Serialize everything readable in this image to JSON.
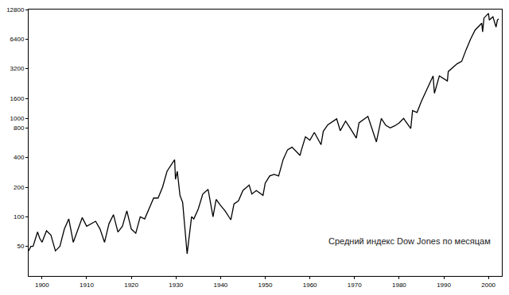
{
  "chart_data": {
    "type": "line",
    "annotation": "Средний индекс Dow Jones по месяцам",
    "x": [
      1897.0,
      1897.5,
      1898.0,
      1899.0,
      1899.5,
      1900.0,
      1901.0,
      1902.0,
      1903.0,
      1904.0,
      1905.0,
      1906.0,
      1907.0,
      1908.0,
      1909.0,
      1910.0,
      1911.0,
      1912.0,
      1913.0,
      1914.0,
      1915.0,
      1916.0,
      1917.0,
      1918.0,
      1919.0,
      1920.0,
      1921.0,
      1922.0,
      1923.0,
      1924.0,
      1925.0,
      1926.0,
      1927.0,
      1928.0,
      1929.7,
      1929.9,
      1930.3,
      1930.9,
      1931.5,
      1932.5,
      1933.5,
      1934.0,
      1935.0,
      1936.0,
      1937.2,
      1938.3,
      1939.0,
      1940.0,
      1941.0,
      1942.3,
      1943.0,
      1944.0,
      1945.0,
      1946.4,
      1947.0,
      1948.0,
      1949.5,
      1950.0,
      1951.0,
      1952.0,
      1953.0,
      1954.0,
      1955.0,
      1956.0,
      1957.8,
      1958.0,
      1959.0,
      1960.0,
      1961.0,
      1962.5,
      1963.0,
      1964.0,
      1966.0,
      1966.8,
      1968.0,
      1969.0,
      1970.4,
      1971.0,
      1973.0,
      1974.9,
      1976.0,
      1977.0,
      1978.0,
      1979.0,
      1980.0,
      1981.0,
      1982.6,
      1983.0,
      1984.0,
      1985.0,
      1986.0,
      1987.6,
      1987.9,
      1989.0,
      1990.8,
      1991.0,
      1993.0,
      1994.0,
      1995.0,
      1996.0,
      1997.0,
      1998.5,
      1998.7,
      1999.0,
      2000.0,
      2000.2,
      2001.0,
      2001.7,
      2002.0,
      2002.3
    ],
    "values": [
      45,
      50,
      50,
      70,
      60,
      55,
      72,
      65,
      45,
      50,
      75,
      95,
      55,
      75,
      98,
      80,
      85,
      90,
      75,
      55,
      85,
      105,
      70,
      80,
      115,
      75,
      68,
      100,
      95,
      120,
      155,
      155,
      200,
      290,
      380,
      240,
      290,
      165,
      140,
      42,
      100,
      95,
      120,
      170,
      190,
      100,
      150,
      130,
      115,
      93,
      135,
      145,
      185,
      210,
      170,
      185,
      165,
      220,
      260,
      270,
      260,
      380,
      480,
      510,
      420,
      460,
      650,
      600,
      720,
      540,
      740,
      860,
      990,
      750,
      940,
      800,
      630,
      900,
      1050,
      577,
      1000,
      850,
      800,
      840,
      900,
      1000,
      790,
      1200,
      1150,
      1500,
      1900,
      2700,
      1800,
      2700,
      2400,
      3000,
      3600,
      3800,
      5000,
      6400,
      7900,
      9300,
      7600,
      10500,
      11700,
      10000,
      10800,
      8500,
      10000,
      10300
    ],
    "color": "#000000",
    "log": "y",
    "grid": false,
    "xlim": [
      1897,
      2003
    ],
    "ylim": [
      25,
      12800
    ],
    "xticks": [
      1900,
      1910,
      1920,
      1930,
      1940,
      1950,
      1960,
      1970,
      1980,
      1990,
      2000
    ],
    "yticks": [
      50,
      100,
      200,
      400,
      800,
      1000,
      1600,
      3200,
      6400,
      12800
    ]
  }
}
